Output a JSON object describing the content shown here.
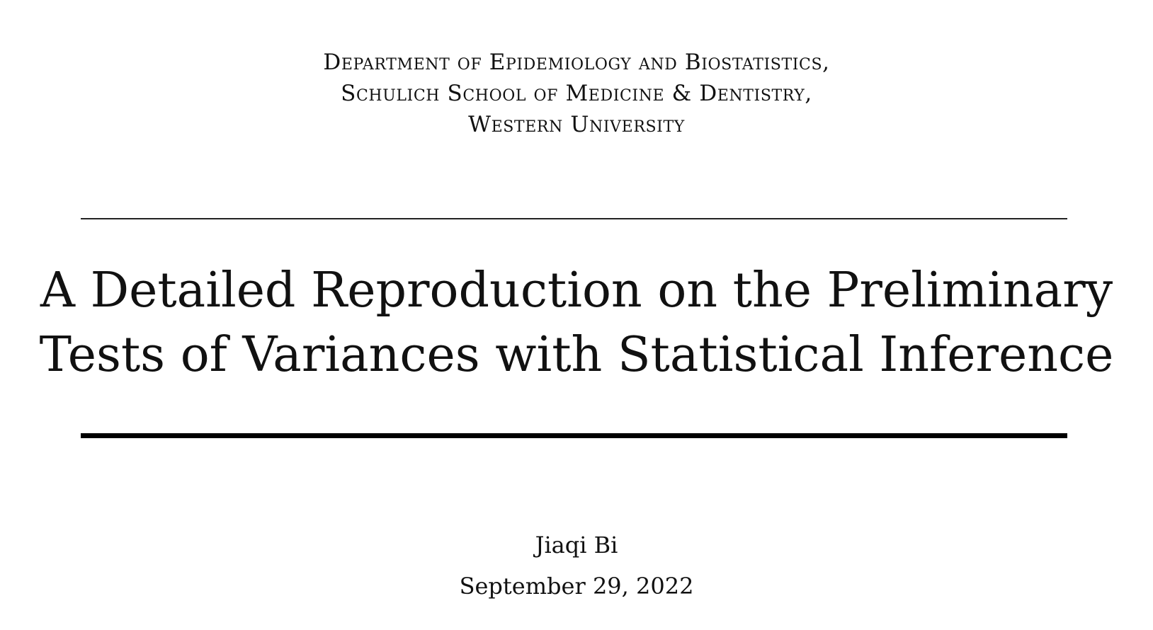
{
  "affiliation": {
    "line1": "Department of Epidemiology and Biostatistics,",
    "line2": "Schulich School of Medicine & Dentistry,",
    "line3": "Western University"
  },
  "title": {
    "line1": "A Detailed Reproduction on the Preliminary",
    "line2": "Tests of Variances with Statistical Inference"
  },
  "author": "Jiaqi Bi",
  "date": "September 29, 2022"
}
